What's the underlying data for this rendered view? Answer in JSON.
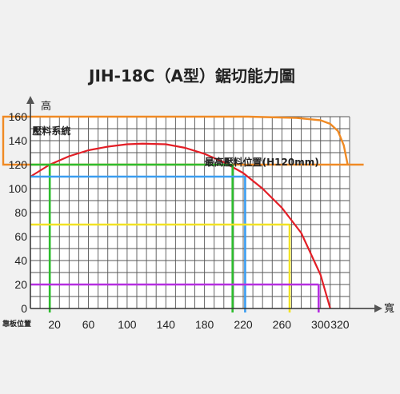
{
  "chart_data": {
    "type": "line",
    "title": "JIH-18C（A型）鋸切能力圖",
    "ylabel": "高",
    "xlabel": "寬",
    "x_corner_label": "靠板位置",
    "xlim": [
      0,
      330
    ],
    "ylim": [
      0,
      160
    ],
    "x_ticks": [
      20,
      60,
      100,
      140,
      180,
      220,
      260,
      300,
      320
    ],
    "y_ticks": [
      0,
      20,
      40,
      60,
      80,
      100,
      120,
      140,
      160
    ],
    "grid": true,
    "series": [
      {
        "name": "壓料系統",
        "color": "#f08a24",
        "x": [
          0,
          225,
          275,
          300,
          310,
          318,
          324,
          328
        ],
        "y": [
          160,
          160,
          159,
          157,
          154,
          148,
          136,
          120
        ]
      },
      {
        "name": "",
        "color": "#e31e26",
        "x": [
          0,
          20,
          40,
          60,
          80,
          100,
          116,
          140,
          160,
          180,
          200,
          220,
          240,
          260,
          280,
          300,
          310
        ],
        "y": [
          110,
          120,
          127,
          132,
          135,
          137,
          137.5,
          137,
          134,
          129,
          122,
          113,
          100,
          84,
          63,
          28,
          0
        ]
      }
    ],
    "rectangles": [
      {
        "color": "#2ebd2e",
        "width": 209,
        "height": 120
      },
      {
        "color": "#3a9df0",
        "width": 222,
        "height": 110
      },
      {
        "color": "#f2e324",
        "width": 268,
        "height": 70
      },
      {
        "color": "#b52ee0",
        "width": 298,
        "height": 20
      }
    ],
    "annotations": [
      {
        "text": "壓料系統",
        "x": 2,
        "y": 150
      },
      {
        "text": "最高壓料位置(H120mm)",
        "x": 180,
        "y": 124
      }
    ]
  }
}
